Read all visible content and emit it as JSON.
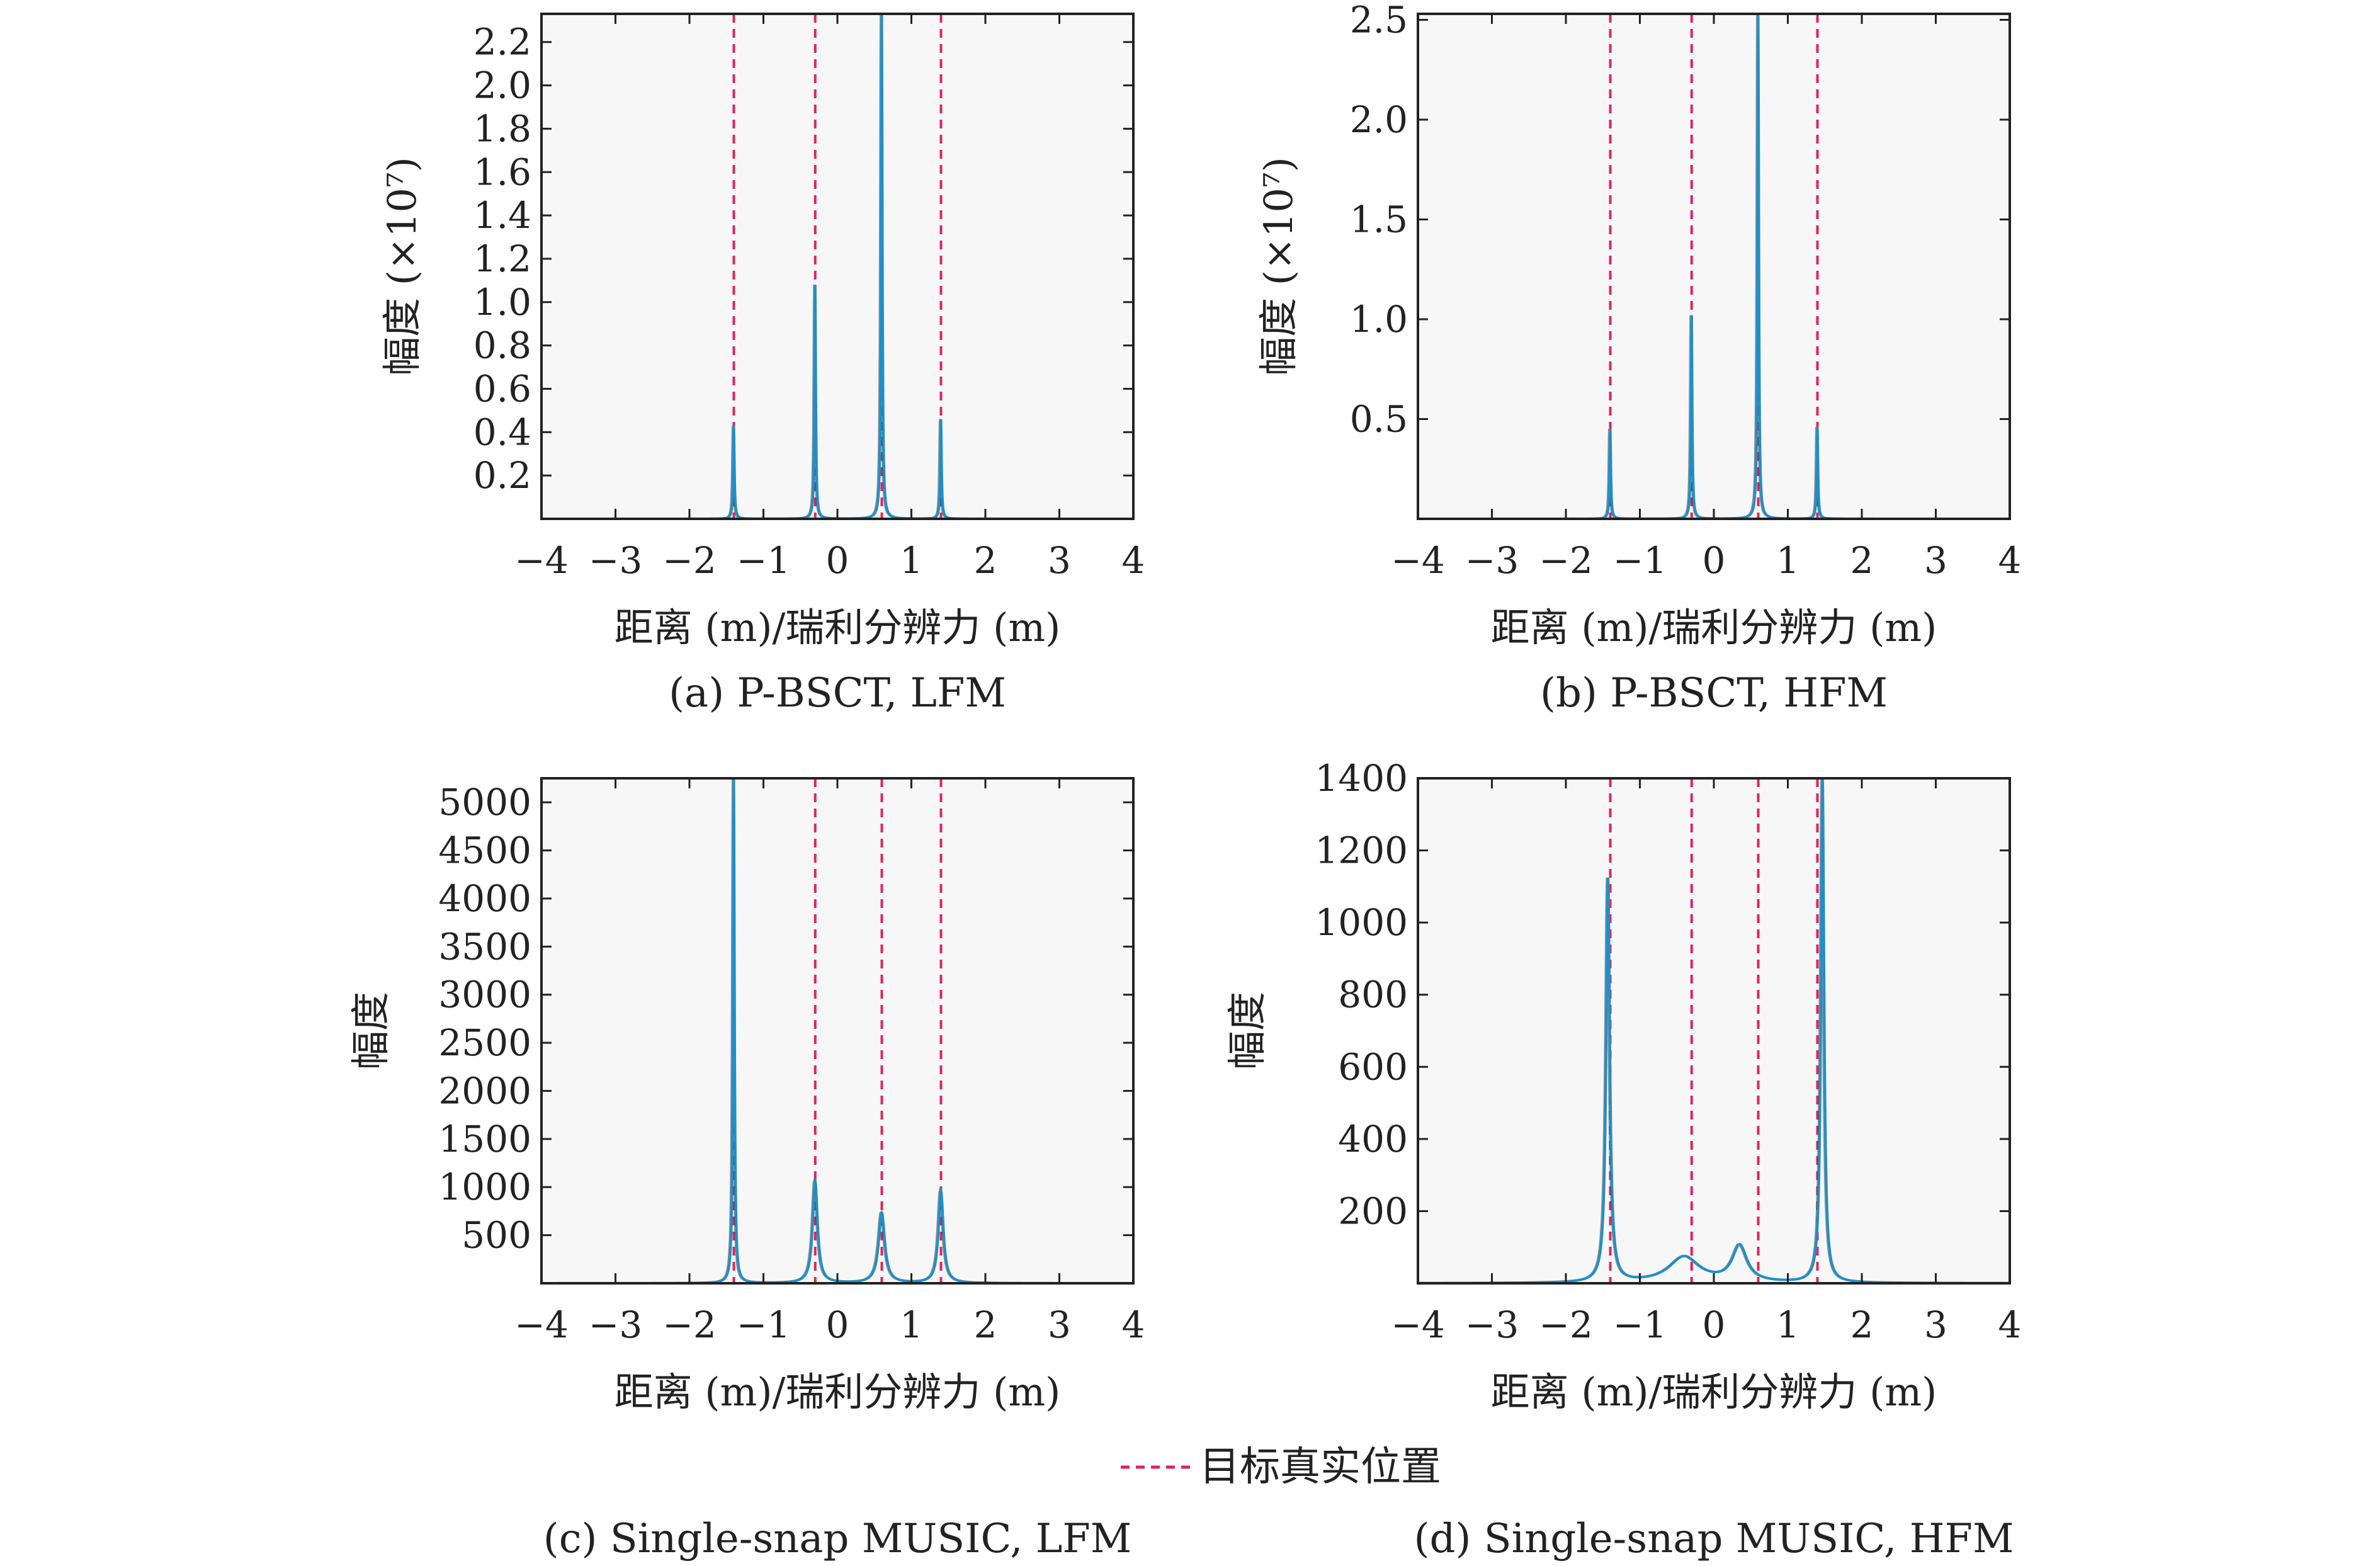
{
  "colors": {
    "curve": "#1f8fc9",
    "curve_shadow": "#3c3c3c",
    "true_position": "#e0245e",
    "axes": "#222222",
    "plot_bg": "#f7f7f7"
  },
  "legend": {
    "label": "目标真实位置",
    "style": "dashed-line"
  },
  "chart_data": [
    {
      "type": "line",
      "caption": "(a) P-BSCT, LFM",
      "xlabel": "距离 (m)/瑞利分辨力 (m)",
      "ylabel": "幅度 (×10⁷)",
      "xlim": [
        -4,
        4
      ],
      "ylim": [
        0,
        2.33
      ],
      "xticks": [
        "−4",
        "−3",
        "−2",
        "−1",
        "0",
        "1",
        "2",
        "3",
        "4"
      ],
      "yticks": [
        "0.2",
        "0.4",
        "0.6",
        "0.8",
        "1.0",
        "1.2",
        "1.4",
        "1.6",
        "1.8",
        "2.0",
        "2.2"
      ],
      "true_positions": [
        -1.4,
        -0.3,
        0.6,
        1.4
      ],
      "peaks": [
        {
          "x": -1.4,
          "y": 0.43,
          "width": 0.01
        },
        {
          "x": -0.3,
          "y": 1.08,
          "width": 0.01
        },
        {
          "x": 0.6,
          "y": 2.33,
          "width": 0.01
        },
        {
          "x": 1.4,
          "y": 0.46,
          "width": 0.01
        }
      ]
    },
    {
      "type": "line",
      "caption": "(b) P-BSCT, HFM",
      "xlabel": "距离 (m)/瑞利分辨力 (m)",
      "ylabel": "幅度 (×10⁷)",
      "xlim": [
        -4,
        4
      ],
      "ylim": [
        0,
        2.53
      ],
      "xticks": [
        "−4",
        "−3",
        "−2",
        "−1",
        "0",
        "1",
        "2",
        "3",
        "4"
      ],
      "yticks": [
        "0.5",
        "1.0",
        "1.5",
        "2.0",
        "2.5"
      ],
      "true_positions": [
        -1.4,
        -0.3,
        0.6,
        1.4
      ],
      "peaks": [
        {
          "x": -1.4,
          "y": 0.45,
          "width": 0.01
        },
        {
          "x": -0.3,
          "y": 1.02,
          "width": 0.01
        },
        {
          "x": 0.6,
          "y": 2.53,
          "width": 0.01
        },
        {
          "x": 1.4,
          "y": 0.46,
          "width": 0.01
        }
      ]
    },
    {
      "type": "line",
      "caption": "(c) Single-snap MUSIC, LFM",
      "xlabel": "距离 (m)/瑞利分辨力 (m)",
      "ylabel": "幅度",
      "xlim": [
        -4,
        4
      ],
      "ylim": [
        0,
        5250
      ],
      "xticks": [
        "−4",
        "−3",
        "−2",
        "−1",
        "0",
        "1",
        "2",
        "3",
        "4"
      ],
      "yticks": [
        "500",
        "1000",
        "1500",
        "2000",
        "2500",
        "3000",
        "3500",
        "4000",
        "4500",
        "5000"
      ],
      "true_positions": [
        -1.4,
        -0.3,
        0.6,
        1.4
      ],
      "peaks": [
        {
          "x": -1.4,
          "y": 5250,
          "width": 0.012
        },
        {
          "x": -0.3,
          "y": 1060,
          "width": 0.04
        },
        {
          "x": 0.6,
          "y": 730,
          "width": 0.05
        },
        {
          "x": 1.4,
          "y": 960,
          "width": 0.04
        }
      ]
    },
    {
      "type": "line",
      "caption": "(d) Single-snap MUSIC, HFM",
      "xlabel": "距离 (m)/瑞利分辨力 (m)",
      "ylabel": "幅度",
      "xlim": [
        -4,
        4
      ],
      "ylim": [
        0,
        1400
      ],
      "xticks": [
        "−4",
        "−3",
        "−2",
        "−1",
        "0",
        "1",
        "2",
        "3",
        "4"
      ],
      "yticks": [
        "200",
        "400",
        "600",
        "800",
        "1000",
        "1200",
        "1400"
      ],
      "true_positions": [
        -1.4,
        -0.3,
        0.6,
        1.4
      ],
      "peaks": [
        {
          "x": -1.43,
          "y": 1120,
          "width": 0.03
        },
        {
          "x": -0.4,
          "y": 72,
          "width": 0.25
        },
        {
          "x": 0.35,
          "y": 100,
          "width": 0.12
        },
        {
          "x": 1.47,
          "y": 1400,
          "width": 0.025
        }
      ]
    }
  ]
}
